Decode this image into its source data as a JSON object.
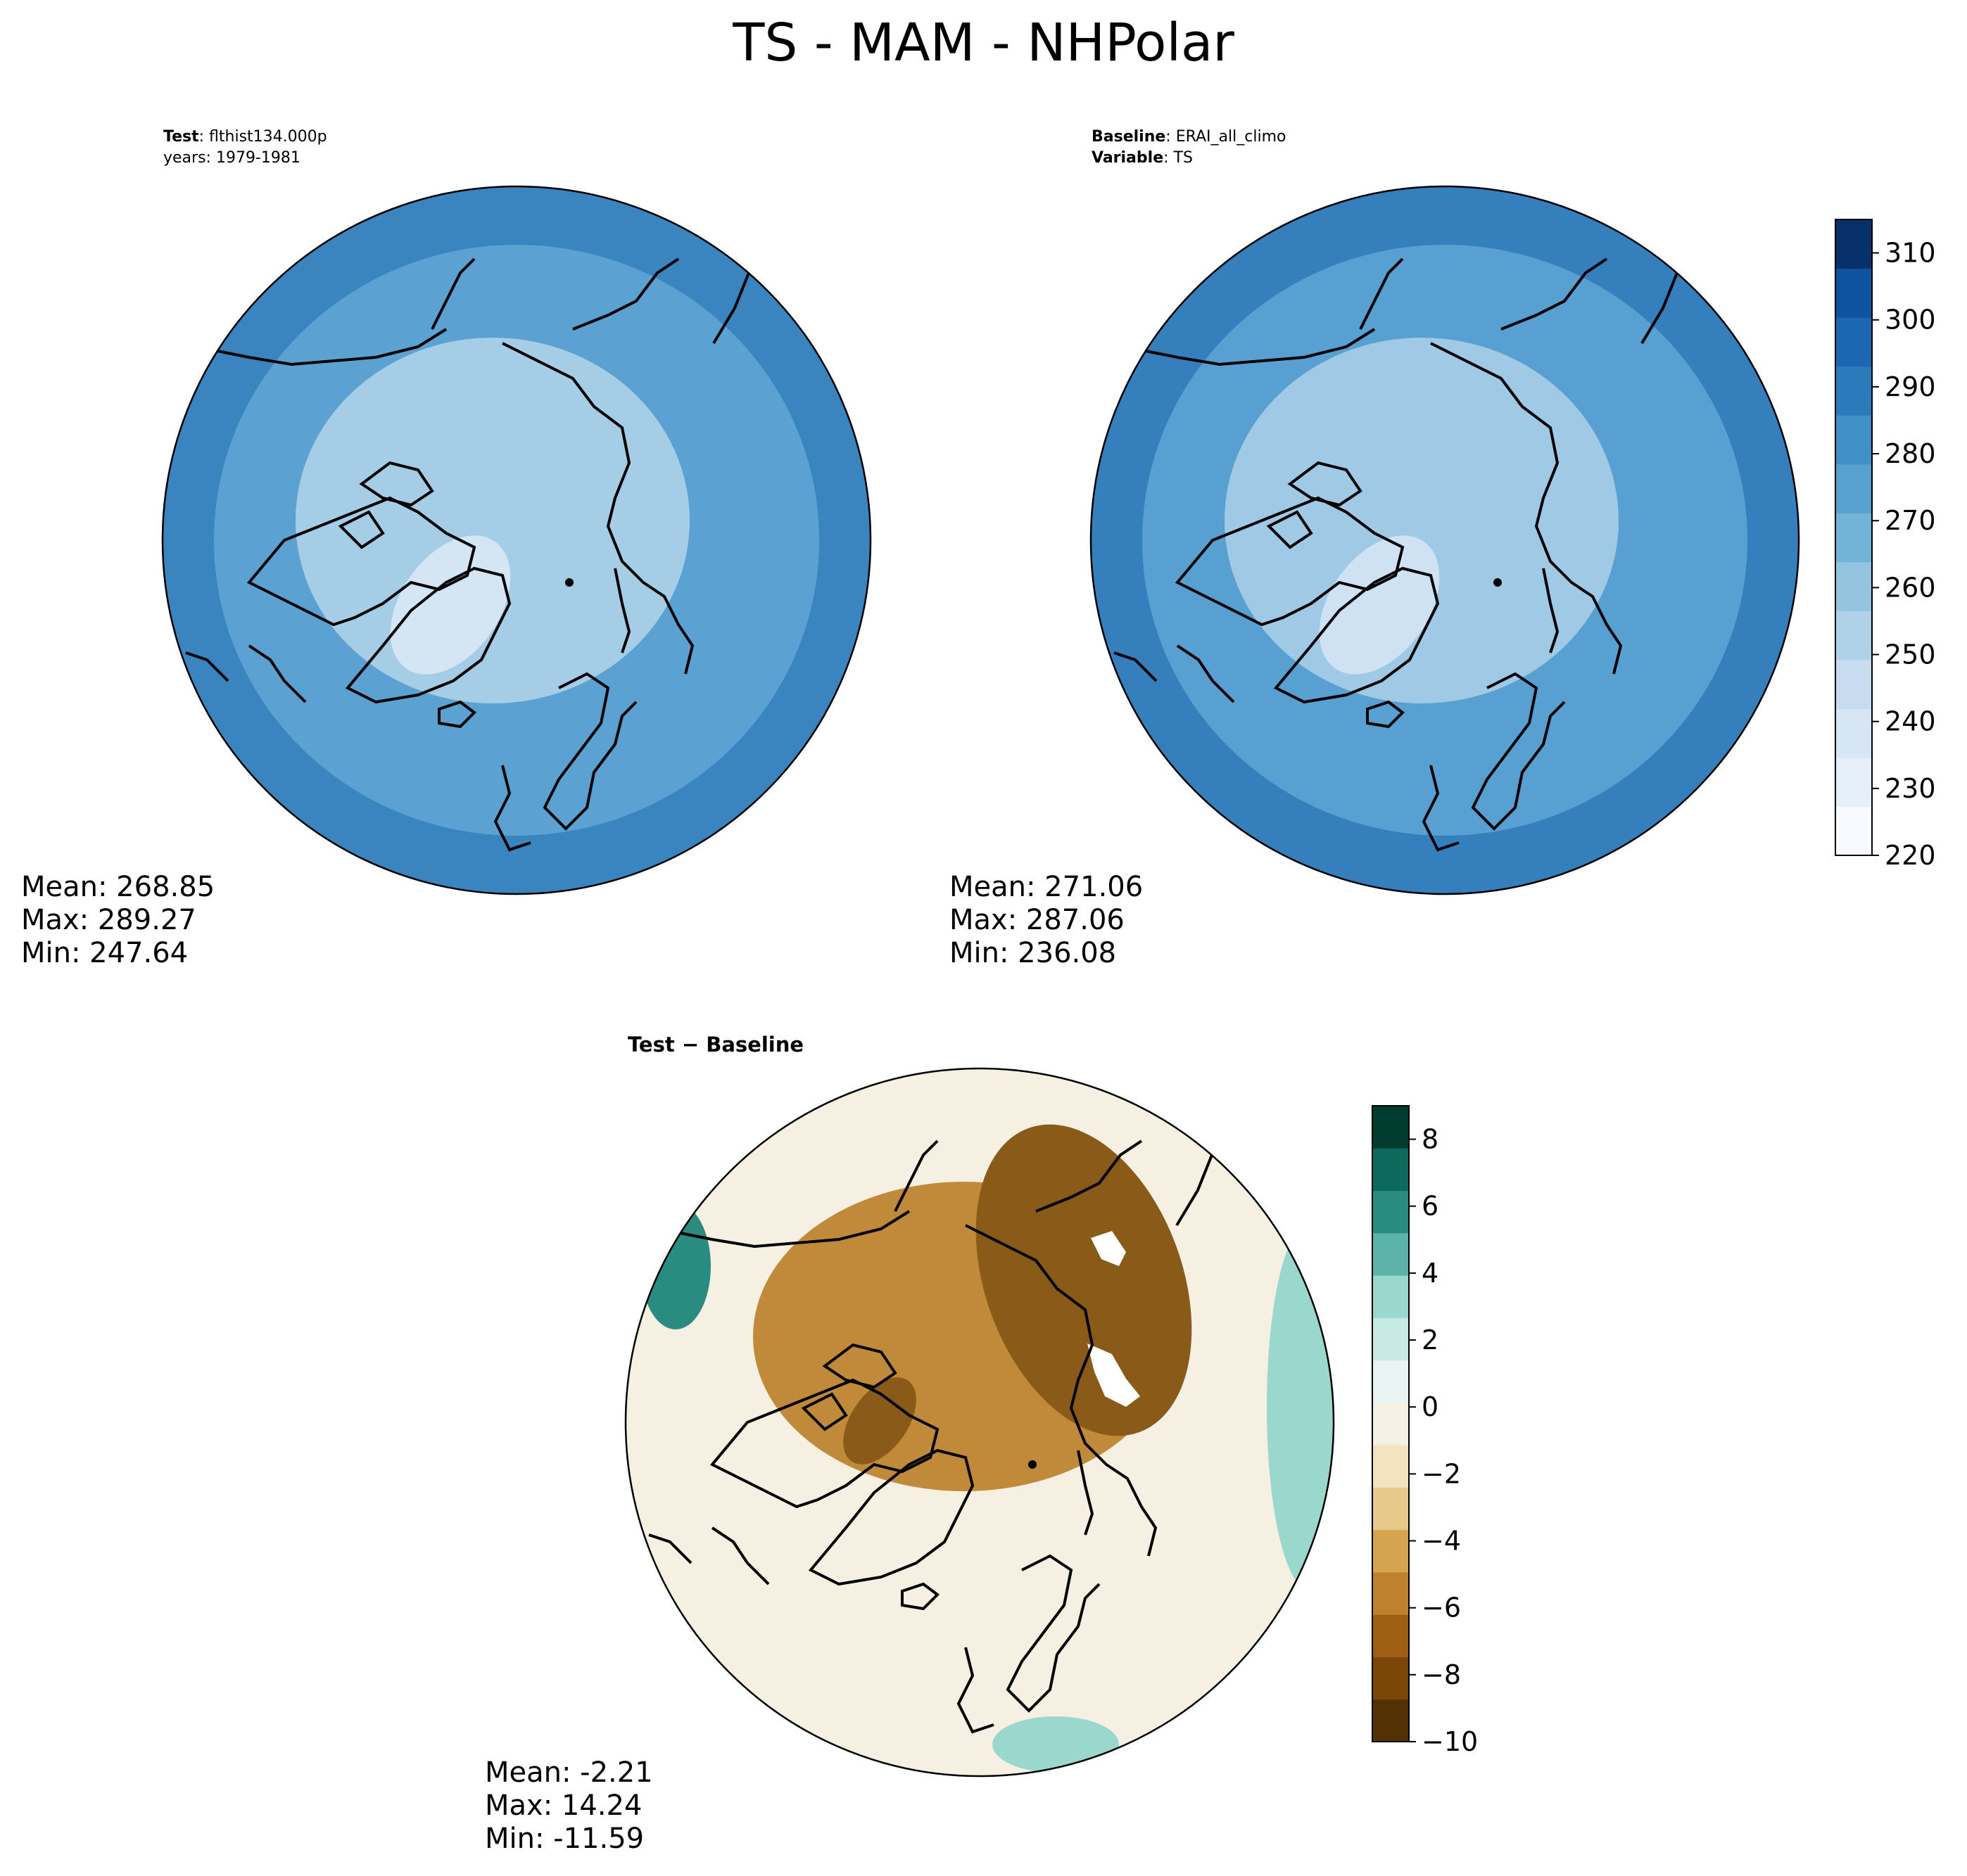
{
  "figure": {
    "title": "TS - MAM - NHPolar"
  },
  "panels": {
    "test": {
      "label_key": "Test",
      "label_value": "flthist134.000p",
      "years_line": "years: 1979-1981",
      "stats": {
        "mean": "Mean: 268.85",
        "max": "Max: 289.27",
        "min": "Min: 247.64"
      }
    },
    "baseline": {
      "label_key": "Baseline",
      "label_value": "ERAI_all_climo",
      "variable_key": "Variable",
      "variable_value": "TS",
      "stats": {
        "mean": "Mean: 271.06",
        "max": "Max: 287.06",
        "min": "Min: 236.08"
      }
    },
    "difference": {
      "title": "Test − Baseline",
      "stats": {
        "mean": "Mean: -2.21",
        "max": "Max: 14.24",
        "min": "Min: -11.59"
      }
    }
  },
  "colorbars": {
    "main": {
      "ticks": [
        "220",
        "230",
        "240",
        "250",
        "260",
        "270",
        "280",
        "290",
        "300",
        "310"
      ],
      "range": [
        220,
        315
      ],
      "colors": [
        "#f7fbff",
        "#e4eff9",
        "#d6e6f4",
        "#c7dcef",
        "#b0d2e8",
        "#94c4df",
        "#74b3d8",
        "#58a1cf",
        "#4090c5",
        "#2b7bba",
        "#1c67af",
        "#0d539d",
        "#08306b"
      ],
      "colormap": "Blues"
    },
    "diff": {
      "ticks": [
        "−10",
        "−8",
        "−6",
        "−4",
        "−2",
        "0",
        "2",
        "4",
        "6",
        "8"
      ],
      "range": [
        -10,
        9
      ],
      "colors": [
        "#543005",
        "#7a4708",
        "#9e5e13",
        "#bf812d",
        "#d4a54e",
        "#e6c98b",
        "#f3e3bf",
        "#f5f1e4",
        "#e9f3f1",
        "#c7eae5",
        "#9ad8cd",
        "#5cb3a7",
        "#2a8b80",
        "#0c6a5c",
        "#003c30"
      ],
      "colormap": "BrBG"
    }
  },
  "map_fill": {
    "test_outer": "#3a85c0",
    "test_mid": "#5ba2d2",
    "test_inner": "#a6cde6",
    "test_core": "#d4e5f4",
    "baseline_outer": "#357fbd",
    "baseline_mid": "#57a0d1",
    "baseline_inner": "#9fc9e5",
    "baseline_core": "#cfe2f3",
    "diff_background": "#f5f0e2",
    "diff_brown": "#c08a3a",
    "diff_darkbrown": "#8a5a18",
    "diff_teal": "#9ad8cd",
    "diff_darkteal": "#2a8b80"
  }
}
